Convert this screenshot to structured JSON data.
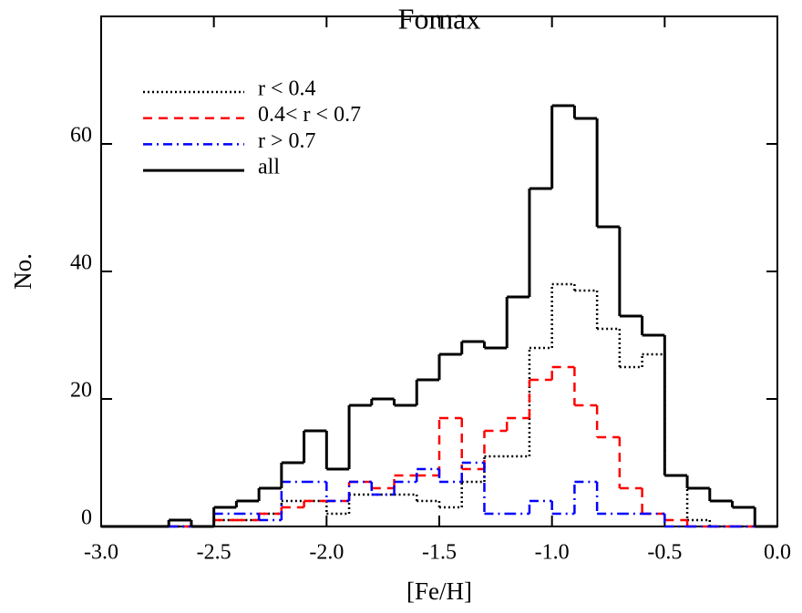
{
  "chart_data": {
    "type": "histogram",
    "title": "Fornax",
    "x_label": "[Fe/H]",
    "y_label": "No.",
    "bins": [
      -3.0,
      -2.9,
      -2.8,
      -2.7,
      -2.6,
      -2.5,
      -2.4,
      -2.3,
      -2.2,
      -2.1,
      -2.0,
      -1.9,
      -1.8,
      -1.7,
      -1.6,
      -1.5,
      -1.4,
      -1.3,
      -1.2,
      -1.1,
      -1.0,
      -0.9,
      -0.8,
      -0.7,
      -0.6,
      -0.5,
      -0.4,
      -0.3,
      -0.2,
      -0.1,
      0.0
    ],
    "series": [
      {
        "name": "r < 0.4",
        "color": "#000000",
        "linestyle": "dotted",
        "values": [
          0,
          0,
          0,
          0,
          0,
          1,
          1,
          2,
          4,
          4,
          2,
          5,
          5,
          5,
          4,
          3,
          7,
          11,
          11,
          28,
          38,
          37,
          31,
          25,
          27,
          8,
          1,
          0,
          0,
          0
        ]
      },
      {
        "name": "0.4< r < 0.7",
        "color": "#ff0000",
        "linestyle": "dashed",
        "values": [
          0,
          0,
          0,
          0,
          0,
          1,
          1,
          2,
          3,
          4,
          4,
          7,
          6,
          8,
          8,
          17,
          9,
          15,
          17,
          23,
          25,
          19,
          14,
          6,
          2,
          1,
          0,
          0,
          0,
          0
        ]
      },
      {
        "name": "r > 0.7",
        "color": "#0000ff",
        "linestyle": "dashdot",
        "values": [
          0,
          0,
          0,
          0,
          0,
          2,
          2,
          1,
          7,
          7,
          4,
          7,
          5,
          7,
          9,
          7,
          10,
          2,
          2,
          4,
          2,
          7,
          2,
          2,
          2,
          0,
          0,
          0,
          0,
          0
        ]
      },
      {
        "name": "all",
        "color": "#000000",
        "linestyle": "solid",
        "values": [
          0,
          0,
          0,
          1,
          0,
          3,
          4,
          6,
          10,
          15,
          9,
          19,
          20,
          19,
          23,
          27,
          29,
          28,
          36,
          53,
          66,
          64,
          47,
          33,
          30,
          8,
          6,
          4,
          3,
          0
        ]
      }
    ],
    "xlim": [
      -3.0,
      0.0
    ],
    "xticks": [
      {
        "value": -3.0,
        "label": "-3.0"
      },
      {
        "value": -2.5,
        "label": "-2.5"
      },
      {
        "value": -2.0,
        "label": "-2.0"
      },
      {
        "value": -1.5,
        "label": "-1.5"
      },
      {
        "value": -1.0,
        "label": "-1.0"
      },
      {
        "value": -0.5,
        "label": "-0.5"
      },
      {
        "value": 0.0,
        "label": "0.0"
      }
    ],
    "ylim": [
      0,
      80
    ],
    "yticks": [
      0,
      20,
      40,
      60
    ],
    "legend": "upper left"
  }
}
